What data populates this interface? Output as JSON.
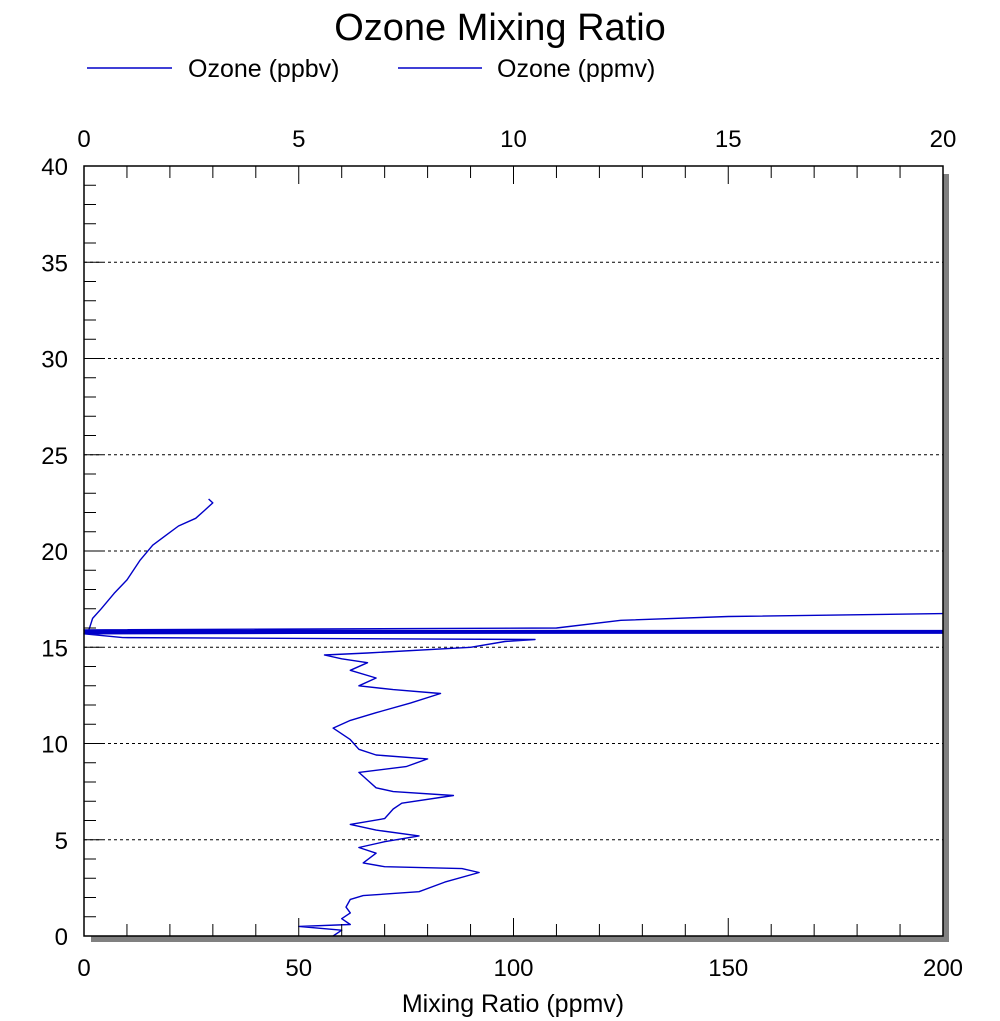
{
  "chart_data": {
    "type": "line",
    "title": "Ozone Mixing Ratio",
    "xlabel": "Mixing Ratio (ppmv)",
    "ylabel": "",
    "xlim_bottom": [
      0,
      200
    ],
    "xlim_top": [
      0,
      20
    ],
    "ylim": [
      0,
      40
    ],
    "x_ticks_bottom": [
      "0",
      "50",
      "100",
      "150",
      "200"
    ],
    "x_ticks_top": [
      "0",
      "5",
      "10",
      "15",
      "20"
    ],
    "y_ticks": [
      "0",
      "5",
      "10",
      "15",
      "20",
      "25",
      "30",
      "35",
      "40"
    ],
    "y_gridlines": [
      5,
      10,
      15,
      20,
      25,
      30,
      35
    ],
    "grid": "horizontal dotted",
    "legend_position": "top-left",
    "series": [
      {
        "name": "Ozone (ppbv)",
        "color": "#0000c8",
        "axis": "bottom",
        "points": [
          [
            58,
            0.0
          ],
          [
            60,
            0.3
          ],
          [
            50,
            0.5
          ],
          [
            62,
            0.6
          ],
          [
            60,
            0.9
          ],
          [
            62,
            1.2
          ],
          [
            61,
            1.5
          ],
          [
            62,
            1.9
          ],
          [
            65,
            2.1
          ],
          [
            78,
            2.3
          ],
          [
            84,
            2.8
          ],
          [
            92,
            3.3
          ],
          [
            88,
            3.5
          ],
          [
            70,
            3.6
          ],
          [
            65,
            3.8
          ],
          [
            68,
            4.3
          ],
          [
            64,
            4.6
          ],
          [
            70,
            4.9
          ],
          [
            78,
            5.2
          ],
          [
            68,
            5.5
          ],
          [
            62,
            5.8
          ],
          [
            70,
            6.1
          ],
          [
            72,
            6.6
          ],
          [
            74,
            6.9
          ],
          [
            86,
            7.3
          ],
          [
            72,
            7.5
          ],
          [
            68,
            7.7
          ],
          [
            66,
            8.1
          ],
          [
            64,
            8.5
          ],
          [
            75,
            8.8
          ],
          [
            80,
            9.2
          ],
          [
            68,
            9.4
          ],
          [
            64,
            9.7
          ],
          [
            62,
            10.2
          ],
          [
            58,
            10.8
          ],
          [
            62,
            11.2
          ],
          [
            68,
            11.6
          ],
          [
            76,
            12.1
          ],
          [
            83,
            12.6
          ],
          [
            72,
            12.8
          ],
          [
            64,
            13.0
          ],
          [
            68,
            13.4
          ],
          [
            62,
            13.8
          ],
          [
            66,
            14.2
          ],
          [
            60,
            14.4
          ],
          [
            56,
            14.6
          ],
          [
            66,
            14.7
          ],
          [
            90,
            15.0
          ],
          [
            98,
            15.3
          ],
          [
            105,
            15.4
          ],
          [
            9,
            15.5
          ],
          [
            0,
            15.7
          ],
          [
            200,
            15.8
          ],
          [
            0,
            15.9
          ],
          [
            110,
            16.0
          ],
          [
            125,
            16.4
          ],
          [
            150,
            16.6
          ],
          [
            200,
            16.75
          ]
        ]
      },
      {
        "name": "Ozone (ppmv)",
        "color": "#0000c8",
        "axis": "top",
        "points": [
          [
            0.1,
            15.8
          ],
          [
            0.2,
            16.5
          ],
          [
            0.4,
            17.0
          ],
          [
            0.7,
            17.8
          ],
          [
            1.0,
            18.5
          ],
          [
            1.3,
            19.5
          ],
          [
            1.6,
            20.3
          ],
          [
            1.9,
            20.8
          ],
          [
            2.2,
            21.3
          ],
          [
            2.6,
            21.7
          ],
          [
            2.8,
            22.1
          ],
          [
            3.0,
            22.5
          ],
          [
            2.9,
            22.7
          ]
        ]
      }
    ]
  }
}
